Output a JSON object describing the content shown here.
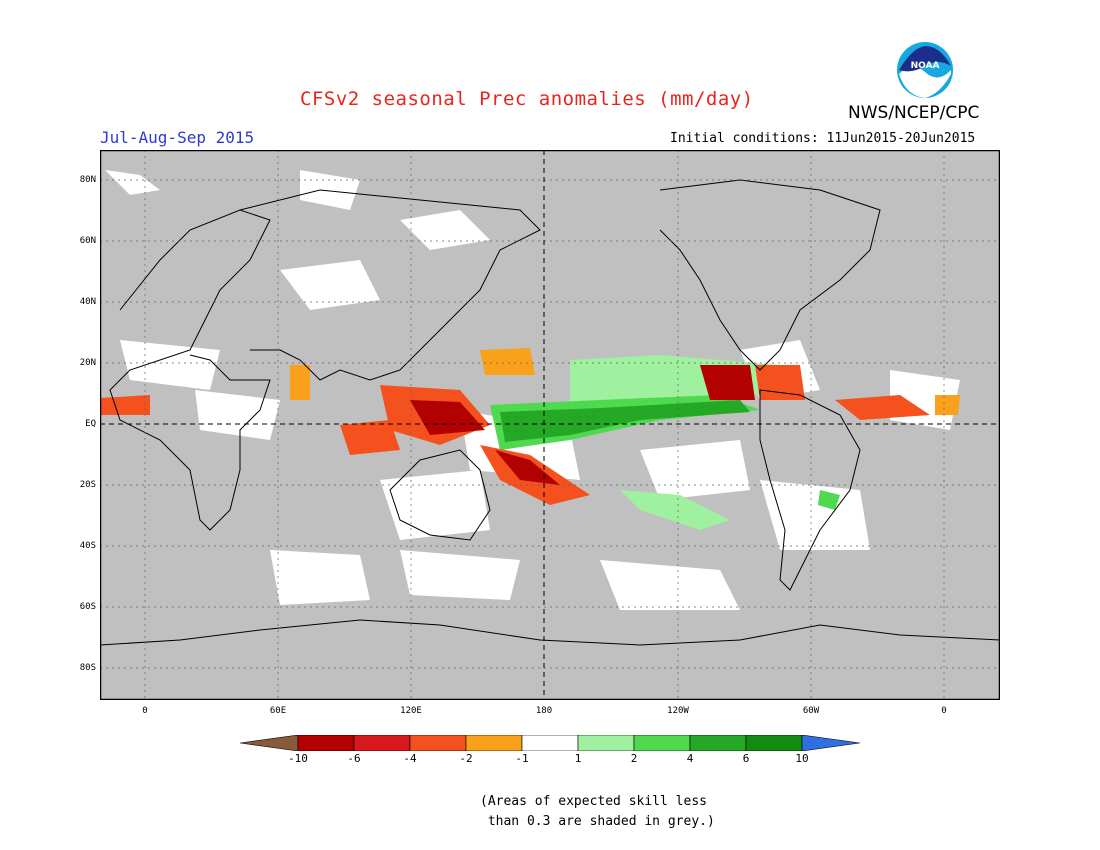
{
  "header": {
    "title": "CFSv2 seasonal Prec anomalies (mm/day)",
    "period": "Jul-Aug-Sep 2015",
    "initial_conditions": "Initial conditions: 11Jun2015-20Jun2015",
    "agency": "NWS/NCEP/CPC",
    "logo_text": "NOAA"
  },
  "map": {
    "lat_labels": [
      "80N",
      "60N",
      "40N",
      "20N",
      "EQ",
      "20S",
      "40S",
      "60S",
      "80S"
    ],
    "lon_labels": [
      "0",
      "60E",
      "120E",
      "180",
      "120W",
      "60W",
      "0"
    ],
    "background_color": "#c0c0c0"
  },
  "legend": {
    "ticks": [
      "-10",
      "-6",
      "-4",
      "-2",
      "-1",
      "1",
      "2",
      "4",
      "6",
      "10"
    ],
    "colors": [
      "#8b5a3c",
      "#b30000",
      "#d7191c",
      "#f4511e",
      "#f9a11b",
      "#ffffff",
      "#9ff09f",
      "#4ed94e",
      "#25a825",
      "#138b13",
      "#2f6fe0"
    ]
  },
  "note": "(Areas of expected skill less\n than 0.3 are shaded in grey.)"
}
